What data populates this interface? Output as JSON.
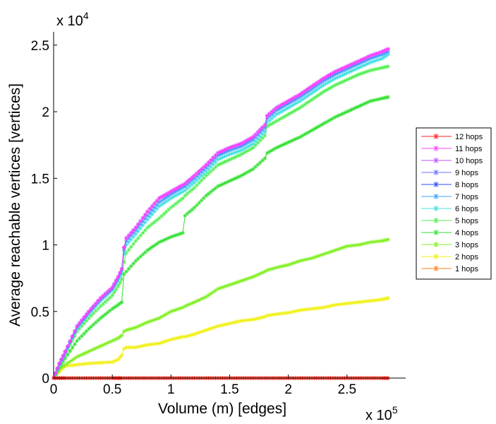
{
  "chart_data": {
    "type": "line",
    "title": "",
    "xlabel": "Volume (m) [edges]",
    "ylabel": "Average reachable vertices [vertices]",
    "x_multiplier": "x 10",
    "x_multiplier_exp": "5",
    "y_multiplier": "x 10",
    "y_multiplier_exp": "4",
    "xlim": [
      0,
      300000
    ],
    "ylim": [
      0,
      26000
    ],
    "x_ticks": [
      0,
      50000,
      100000,
      150000,
      200000,
      250000
    ],
    "x_tick_labels": [
      "0",
      "0.5",
      "1",
      "1.5",
      "2",
      "2.5"
    ],
    "y_ticks": [
      0,
      5000,
      10000,
      15000,
      20000,
      25000
    ],
    "y_tick_labels": [
      "0",
      "0.5",
      "1",
      "1.5",
      "2",
      "2.5"
    ],
    "legend_position": "right",
    "x": [
      0,
      5000,
      10000,
      20000,
      30000,
      40000,
      50000,
      55000,
      58000,
      60000,
      62000,
      70000,
      80000,
      90000,
      100000,
      110000,
      112000,
      120000,
      130000,
      140000,
      150000,
      160000,
      170000,
      180000,
      182000,
      190000,
      200000,
      210000,
      220000,
      230000,
      240000,
      250000,
      260000,
      270000,
      280000,
      285000
    ],
    "series": [
      {
        "name": "12 hops",
        "color": "#ff2020",
        "values": [
          0,
          0,
          0,
          0,
          0,
          0,
          0,
          0,
          0,
          0,
          0,
          0,
          0,
          0,
          0,
          0,
          0,
          0,
          0,
          0,
          0,
          0,
          0,
          0,
          0,
          0,
          0,
          0,
          0,
          0,
          0,
          0,
          0,
          0,
          0,
          0
        ]
      },
      {
        "name": "11 hops",
        "color": "#ff40ff",
        "values": [
          0,
          1100,
          2000,
          3900,
          5000,
          6000,
          6800,
          7600,
          8200,
          9800,
          10500,
          11300,
          12500,
          13500,
          14000,
          14500,
          14600,
          15200,
          16000,
          16900,
          17300,
          17600,
          18100,
          19000,
          19700,
          20300,
          20800,
          21300,
          21900,
          22500,
          23000,
          23400,
          23800,
          24200,
          24500,
          24700
        ]
      },
      {
        "name": "10 hops",
        "color": "#c050ff",
        "values": [
          0,
          1100,
          2000,
          3900,
          5000,
          6000,
          6800,
          7600,
          8200,
          9800,
          10500,
          11300,
          12500,
          13500,
          14000,
          14500,
          14600,
          15200,
          16000,
          16900,
          17300,
          17600,
          18100,
          19000,
          19700,
          20300,
          20800,
          21300,
          21900,
          22500,
          23000,
          23400,
          23800,
          24200,
          24500,
          24700
        ]
      },
      {
        "name": "9 hops",
        "color": "#7070ff",
        "values": [
          0,
          1100,
          2000,
          3900,
          5000,
          6000,
          6800,
          7600,
          8200,
          9800,
          10500,
          11300,
          12500,
          13500,
          14000,
          14500,
          14600,
          15200,
          16000,
          16900,
          17300,
          17600,
          18100,
          19000,
          19700,
          20300,
          20800,
          21300,
          21900,
          22500,
          23000,
          23400,
          23800,
          24200,
          24500,
          24700
        ]
      },
      {
        "name": "8 hops",
        "color": "#2a4bff",
        "values": [
          0,
          1100,
          2000,
          3900,
          5000,
          6000,
          6800,
          7600,
          8200,
          9800,
          10500,
          11300,
          12500,
          13500,
          14000,
          14500,
          14600,
          15200,
          16000,
          16900,
          17300,
          17600,
          18100,
          19000,
          19700,
          20300,
          20800,
          21300,
          21900,
          22500,
          23000,
          23400,
          23800,
          24200,
          24500,
          24700
        ]
      },
      {
        "name": "7 hops",
        "color": "#3aa0ff",
        "values": [
          0,
          1050,
          1950,
          3800,
          4900,
          5900,
          6700,
          7500,
          8100,
          9600,
          10300,
          11100,
          12200,
          13200,
          13800,
          14300,
          14400,
          15000,
          15800,
          16700,
          17100,
          17400,
          17900,
          18800,
          19500,
          20100,
          20600,
          21100,
          21700,
          22300,
          22800,
          23200,
          23600,
          24000,
          24300,
          24500
        ]
      },
      {
        "name": "6 hops",
        "color": "#40e0e0",
        "values": [
          0,
          1000,
          1900,
          3700,
          4800,
          5800,
          6600,
          7300,
          7900,
          9300,
          10000,
          10800,
          11900,
          12900,
          13500,
          14000,
          14100,
          14700,
          15500,
          16400,
          16800,
          17100,
          17600,
          18500,
          19200,
          19800,
          20300,
          20800,
          21400,
          22000,
          22500,
          22900,
          23300,
          23700,
          24000,
          24300
        ]
      },
      {
        "name": "5 hops",
        "color": "#50f050",
        "values": [
          0,
          900,
          1800,
          3500,
          4500,
          5400,
          6200,
          6900,
          7400,
          8700,
          9400,
          10300,
          11300,
          12000,
          12800,
          13500,
          13700,
          14300,
          15200,
          16000,
          16400,
          16800,
          17300,
          18200,
          18900,
          19300,
          19800,
          20300,
          20900,
          21500,
          22000,
          22400,
          22800,
          23100,
          23300,
          23400
        ]
      },
      {
        "name": "4 hops",
        "color": "#30e030",
        "values": [
          0,
          800,
          1500,
          2800,
          3700,
          4500,
          5200,
          5500,
          5700,
          7800,
          8000,
          8800,
          9600,
          10200,
          10600,
          10900,
          12200,
          12800,
          13700,
          14400,
          14800,
          15200,
          15700,
          16500,
          16900,
          17300,
          17700,
          18100,
          18600,
          19100,
          19600,
          20000,
          20400,
          20800,
          21000,
          21100
        ]
      },
      {
        "name": "3 hops",
        "color": "#80f020",
        "values": [
          0,
          700,
          1000,
          1600,
          2000,
          2400,
          2800,
          3000,
          3200,
          3500,
          3600,
          3800,
          4200,
          4500,
          5000,
          5300,
          5400,
          5700,
          6100,
          6700,
          7000,
          7300,
          7600,
          8000,
          8100,
          8300,
          8500,
          8800,
          9000,
          9300,
          9600,
          9900,
          10000,
          10200,
          10300,
          10400
        ]
      },
      {
        "name": "2 hops",
        "color": "#f0f010",
        "values": [
          0,
          500,
          900,
          1000,
          1100,
          1150,
          1200,
          1400,
          1700,
          2200,
          2300,
          2300,
          2500,
          2600,
          2900,
          3100,
          3100,
          3300,
          3600,
          3900,
          4100,
          4300,
          4400,
          4600,
          4700,
          4800,
          4900,
          5100,
          5200,
          5300,
          5500,
          5600,
          5700,
          5800,
          5900,
          6000
        ]
      },
      {
        "name": "1 hops",
        "color": "#ff8020",
        "values": [
          0,
          0,
          0,
          0,
          0,
          0,
          0,
          0,
          0,
          0,
          0,
          0,
          0,
          0,
          0,
          0,
          0,
          0,
          0,
          0,
          0,
          0,
          0,
          0,
          0,
          0,
          0,
          0,
          0,
          0,
          0,
          0,
          0,
          0,
          0,
          0
        ]
      }
    ]
  }
}
